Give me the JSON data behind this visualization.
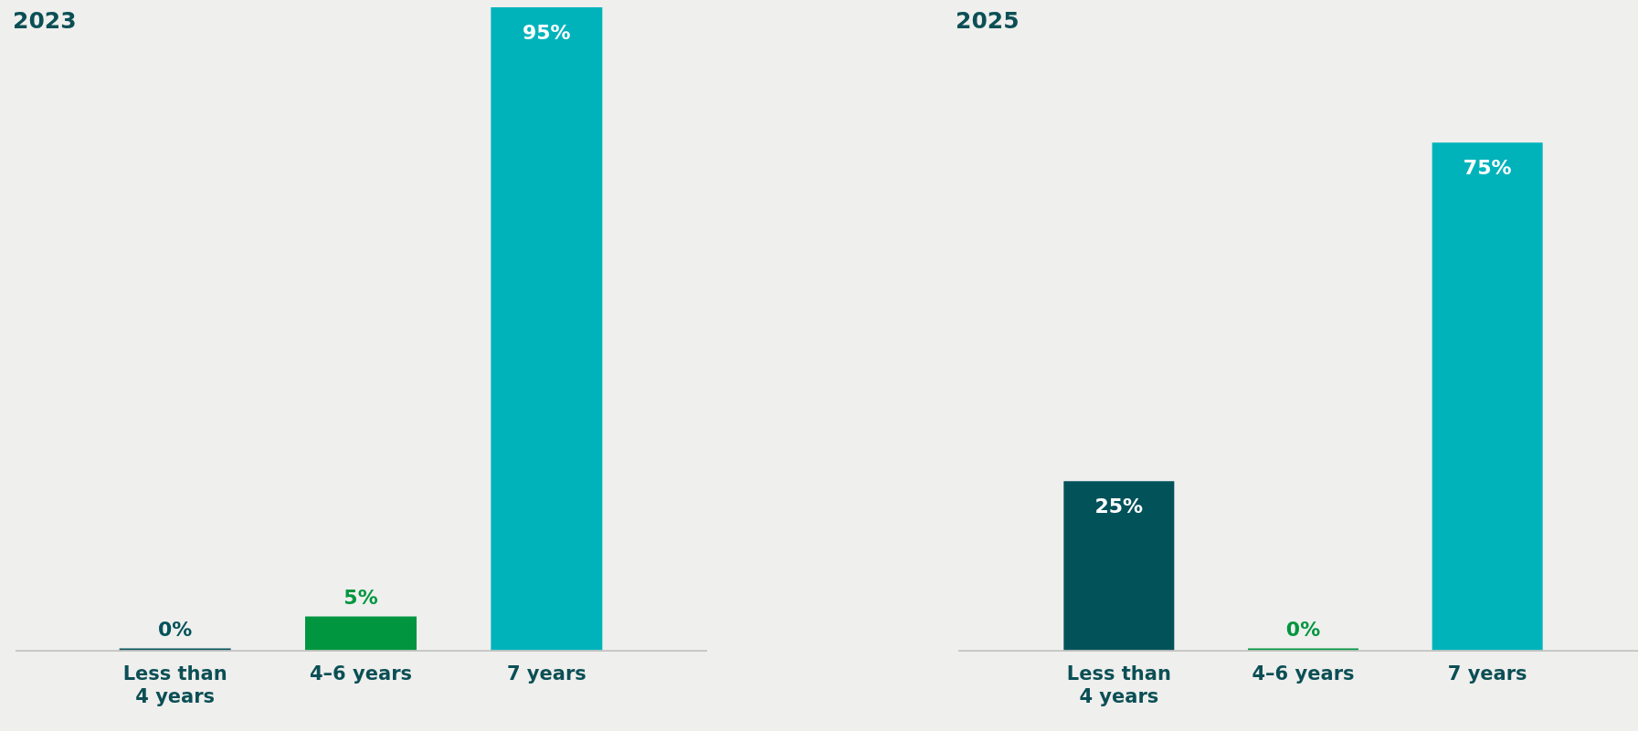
{
  "chart_data": [
    {
      "type": "bar",
      "title": "2023",
      "categories": [
        "Less than 4 years",
        "4–6 years",
        "7 years"
      ],
      "values": [
        0,
        5,
        95
      ],
      "colors": [
        "#02525a",
        "#00963f",
        "#00b3bb"
      ],
      "value_labels": [
        "0%",
        "5%",
        "95%"
      ],
      "tick_labels": "x",
      "grid": false,
      "legend": false
    },
    {
      "type": "bar",
      "title": "2025",
      "categories": [
        "Less than 4 years",
        "4–6 years",
        "7 years"
      ],
      "values": [
        25,
        0,
        75
      ],
      "colors": [
        "#02525a",
        "#00963f",
        "#00b3bb"
      ],
      "value_labels": [
        "25%",
        "0%",
        "75%"
      ],
      "tick_labels": "x",
      "grid": false,
      "legend": false
    }
  ]
}
